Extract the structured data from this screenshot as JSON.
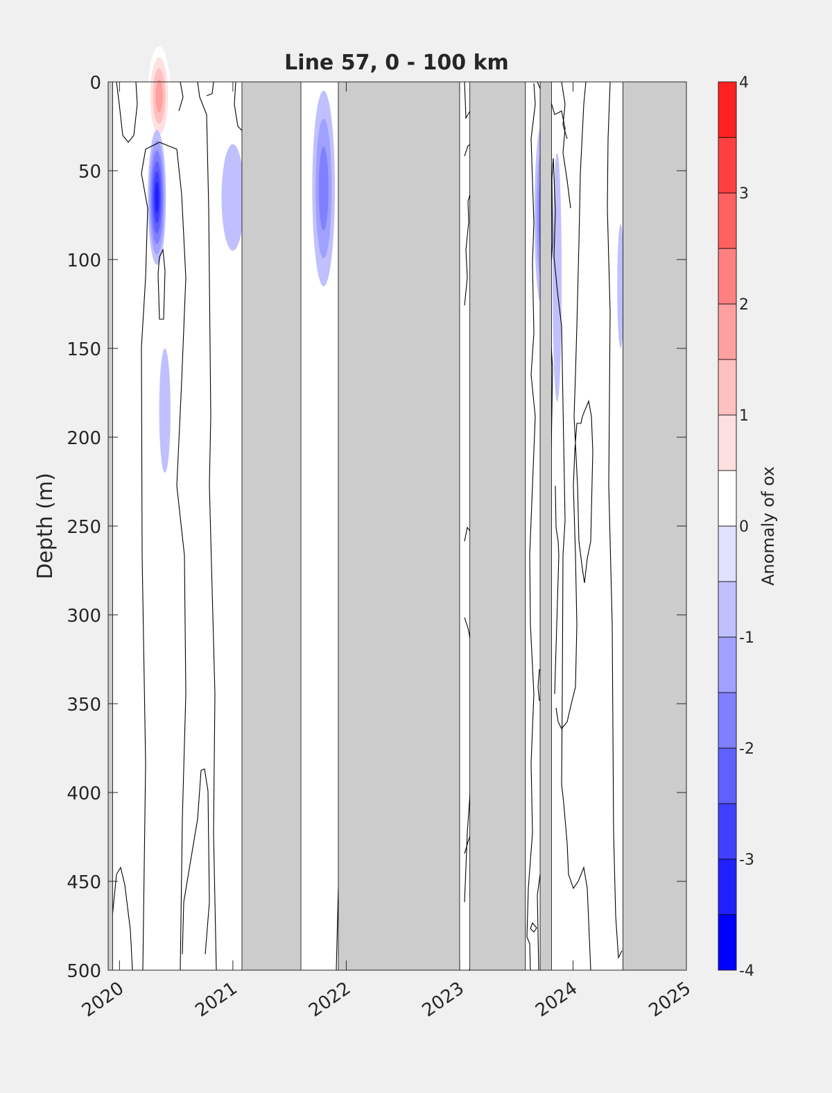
{
  "chart_data": {
    "type": "heatmap",
    "title": "Line 57, 0 - 100 km",
    "ylabel": "Depth (m)",
    "xlabel": "",
    "colorbar_label": "Anomaly of ox",
    "xlim": [
      2019.9,
      2025.0
    ],
    "ylim": [
      0,
      500
    ],
    "y_reversed": true,
    "x_ticks": [
      "2020",
      "2021",
      "2022",
      "2023",
      "2024",
      "2025"
    ],
    "y_ticks": [
      "0",
      "50",
      "100",
      "150",
      "200",
      "250",
      "300",
      "350",
      "400",
      "450",
      "500"
    ],
    "colorbar_ticks": [
      "-4",
      "-3",
      "-2",
      "-1",
      "0",
      "1",
      "2",
      "3",
      "4"
    ],
    "colorbar_range": [
      -4,
      4
    ],
    "colorbar_levels": [
      -4,
      -3.5,
      -3,
      -2.5,
      -2,
      -1.5,
      -1,
      -0.5,
      0,
      0.5,
      1,
      1.5,
      2,
      2.5,
      3,
      3.5,
      4
    ],
    "colorbar_colors": [
      "#0000ff",
      "#2020ff",
      "#4040ff",
      "#6060ff",
      "#8080ff",
      "#a0a0ff",
      "#c0c0ff",
      "#e0e0ff",
      "#ffffff",
      "#ffffff",
      "#ffe0e0",
      "#ffc0c0",
      "#ffa0a0",
      "#ff8080",
      "#ff6060",
      "#ff4040",
      "#ff2020",
      "#ff0000"
    ],
    "no_data_color": "#cccccc",
    "no_data_periods": [
      [
        2019.9,
        2019.94
      ],
      [
        2021.08,
        2021.6
      ],
      [
        2021.93,
        2023.0
      ],
      [
        2023.09,
        2023.58
      ],
      [
        2023.71,
        2023.81
      ],
      [
        2024.44,
        2025.0
      ]
    ],
    "anomaly_patches": [
      {
        "x": 2020.35,
        "depth": 8,
        "rx": 0.1,
        "ry": 28,
        "value": 2.2
      },
      {
        "x": 2020.07,
        "depth": 62,
        "rx": 0.02,
        "ry": 15,
        "value": 0.8
      },
      {
        "x": 2020.33,
        "depth": 65,
        "rx": 0.08,
        "ry": 38,
        "value": -3.2
      },
      {
        "x": 2020.4,
        "depth": 185,
        "rx": 0.05,
        "ry": 35,
        "value": -0.9
      },
      {
        "x": 2020.7,
        "depth": 60,
        "rx": 0.04,
        "ry": 35,
        "value": 1.0
      },
      {
        "x": 2021.0,
        "depth": 65,
        "rx": 0.1,
        "ry": 30,
        "value": -0.8
      },
      {
        "x": 2021.8,
        "depth": 60,
        "rx": 0.1,
        "ry": 55,
        "value": -1.7
      },
      {
        "x": 2023.72,
        "depth": 75,
        "rx": 0.06,
        "ry": 50,
        "value": -1.8
      },
      {
        "x": 2023.86,
        "depth": 110,
        "rx": 0.04,
        "ry": 70,
        "value": -0.9
      },
      {
        "x": 2024.42,
        "depth": 115,
        "rx": 0.03,
        "ry": 35,
        "value": -0.8
      }
    ]
  }
}
